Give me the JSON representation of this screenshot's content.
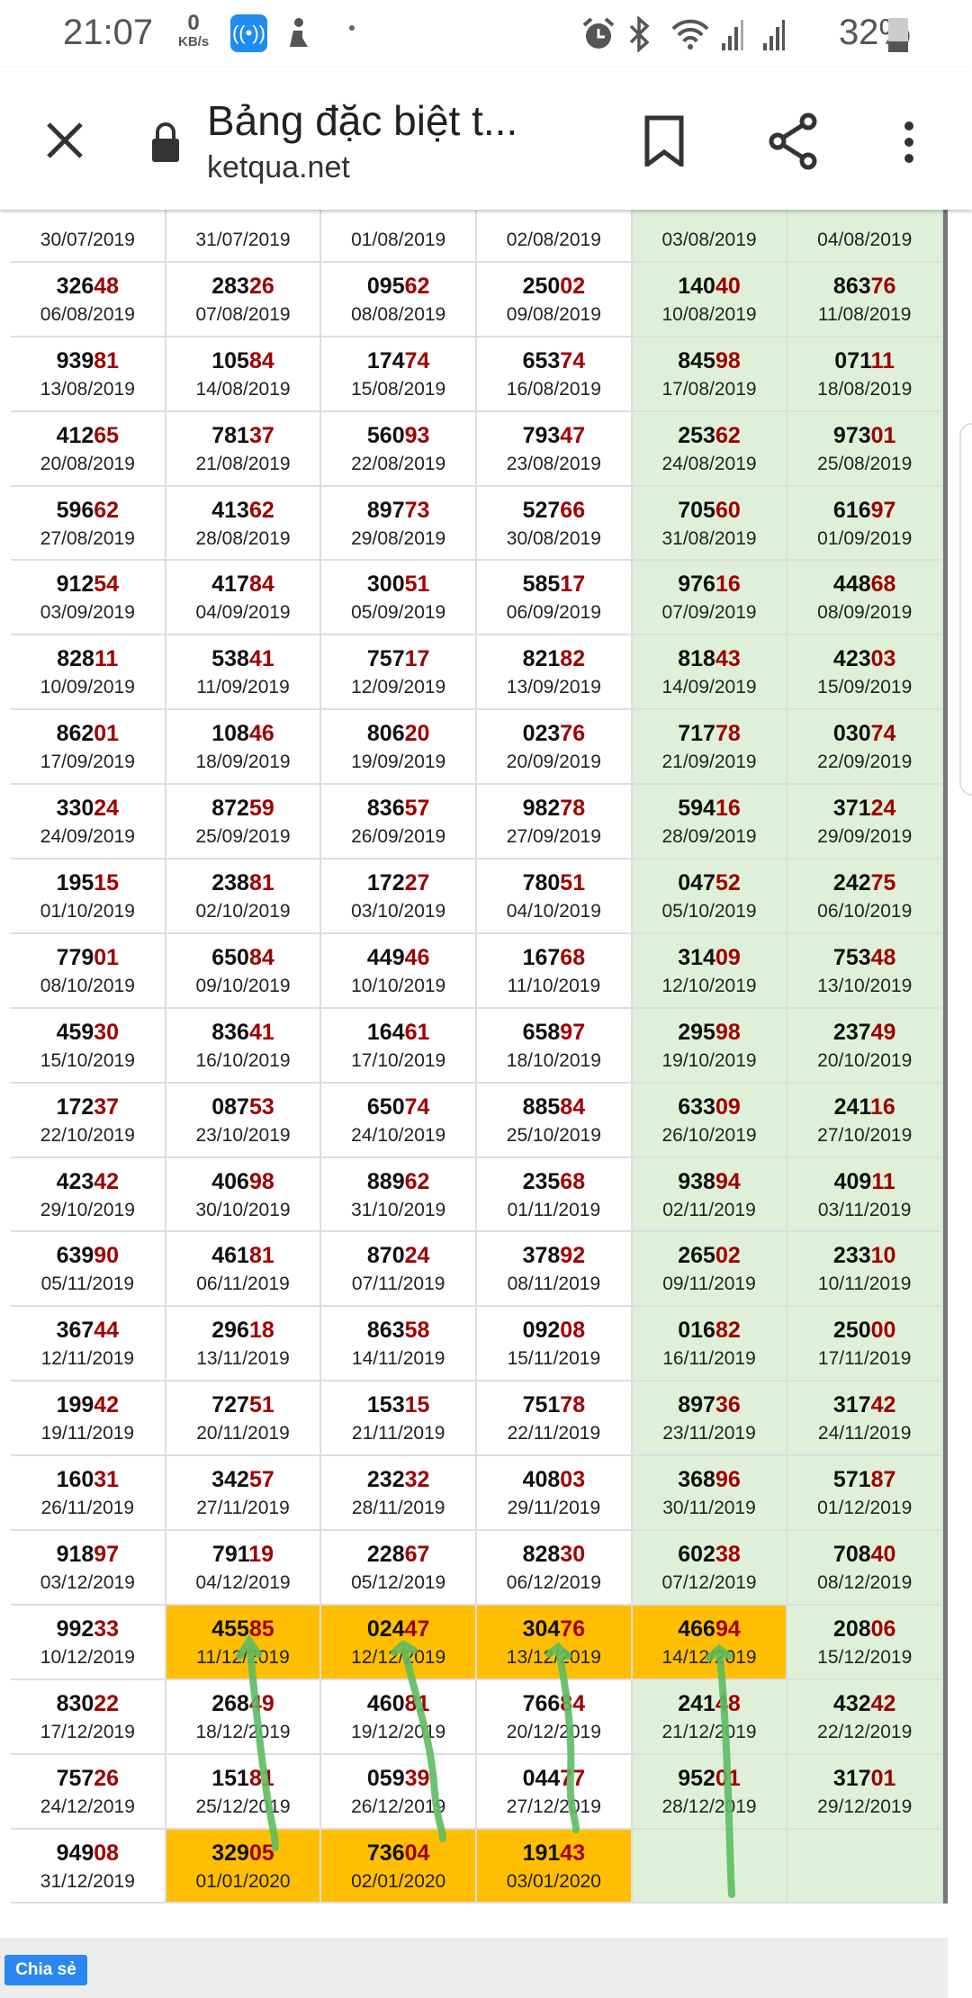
{
  "status_bar": {
    "time": "21:07",
    "net_speed_value": "0",
    "net_speed_unit": "KB/s",
    "battery": "32%",
    "battery_level": 0.32
  },
  "toolbar": {
    "title": "Bảng đặc biệt t...",
    "url": "ketqua.net"
  },
  "colors": {
    "highlight": "#ffbf00",
    "weekend_green": "#dff0d8",
    "tail_red": "#a00000",
    "annotation_green": "#5dbb63"
  },
  "table": {
    "rows": [
      [
        {
          "num": "",
          "date": "30/07/2019"
        },
        {
          "num": "",
          "date": "31/07/2019"
        },
        {
          "num": "",
          "date": "01/08/2019"
        },
        {
          "num": "",
          "date": "02/08/2019"
        },
        {
          "num": "",
          "date": "03/08/2019"
        },
        {
          "num": "",
          "date": "04/08/2019"
        }
      ],
      [
        {
          "num": "32648",
          "date": "06/08/2019"
        },
        {
          "num": "28326",
          "date": "07/08/2019"
        },
        {
          "num": "09562",
          "date": "08/08/2019"
        },
        {
          "num": "25002",
          "date": "09/08/2019"
        },
        {
          "num": "14040",
          "date": "10/08/2019"
        },
        {
          "num": "86376",
          "date": "11/08/2019"
        }
      ],
      [
        {
          "num": "93981",
          "date": "13/08/2019"
        },
        {
          "num": "10584",
          "date": "14/08/2019"
        },
        {
          "num": "17474",
          "date": "15/08/2019"
        },
        {
          "num": "65374",
          "date": "16/08/2019"
        },
        {
          "num": "84598",
          "date": "17/08/2019"
        },
        {
          "num": "07111",
          "date": "18/08/2019"
        }
      ],
      [
        {
          "num": "41265",
          "date": "20/08/2019"
        },
        {
          "num": "78137",
          "date": "21/08/2019"
        },
        {
          "num": "56093",
          "date": "22/08/2019"
        },
        {
          "num": "79347",
          "date": "23/08/2019"
        },
        {
          "num": "25362",
          "date": "24/08/2019"
        },
        {
          "num": "97301",
          "date": "25/08/2019"
        }
      ],
      [
        {
          "num": "59662",
          "date": "27/08/2019"
        },
        {
          "num": "41362",
          "date": "28/08/2019"
        },
        {
          "num": "89773",
          "date": "29/08/2019"
        },
        {
          "num": "52766",
          "date": "30/08/2019"
        },
        {
          "num": "70560",
          "date": "31/08/2019"
        },
        {
          "num": "61697",
          "date": "01/09/2019"
        }
      ],
      [
        {
          "num": "91254",
          "date": "03/09/2019"
        },
        {
          "num": "41784",
          "date": "04/09/2019"
        },
        {
          "num": "30051",
          "date": "05/09/2019"
        },
        {
          "num": "58517",
          "date": "06/09/2019"
        },
        {
          "num": "97616",
          "date": "07/09/2019"
        },
        {
          "num": "44868",
          "date": "08/09/2019"
        }
      ],
      [
        {
          "num": "82811",
          "date": "10/09/2019"
        },
        {
          "num": "53841",
          "date": "11/09/2019"
        },
        {
          "num": "75717",
          "date": "12/09/2019"
        },
        {
          "num": "82182",
          "date": "13/09/2019"
        },
        {
          "num": "81843",
          "date": "14/09/2019"
        },
        {
          "num": "42303",
          "date": "15/09/2019"
        }
      ],
      [
        {
          "num": "86201",
          "date": "17/09/2019"
        },
        {
          "num": "10846",
          "date": "18/09/2019"
        },
        {
          "num": "80620",
          "date": "19/09/2019"
        },
        {
          "num": "02376",
          "date": "20/09/2019"
        },
        {
          "num": "71778",
          "date": "21/09/2019"
        },
        {
          "num": "03074",
          "date": "22/09/2019"
        }
      ],
      [
        {
          "num": "33024",
          "date": "24/09/2019"
        },
        {
          "num": "87259",
          "date": "25/09/2019"
        },
        {
          "num": "83657",
          "date": "26/09/2019"
        },
        {
          "num": "98278",
          "date": "27/09/2019"
        },
        {
          "num": "59416",
          "date": "28/09/2019"
        },
        {
          "num": "37124",
          "date": "29/09/2019"
        }
      ],
      [
        {
          "num": "19515",
          "date": "01/10/2019"
        },
        {
          "num": "23881",
          "date": "02/10/2019"
        },
        {
          "num": "17227",
          "date": "03/10/2019"
        },
        {
          "num": "78051",
          "date": "04/10/2019"
        },
        {
          "num": "04752",
          "date": "05/10/2019"
        },
        {
          "num": "24275",
          "date": "06/10/2019"
        }
      ],
      [
        {
          "num": "77901",
          "date": "08/10/2019"
        },
        {
          "num": "65084",
          "date": "09/10/2019"
        },
        {
          "num": "44946",
          "date": "10/10/2019"
        },
        {
          "num": "16768",
          "date": "11/10/2019"
        },
        {
          "num": "31409",
          "date": "12/10/2019"
        },
        {
          "num": "75348",
          "date": "13/10/2019"
        }
      ],
      [
        {
          "num": "45930",
          "date": "15/10/2019"
        },
        {
          "num": "83641",
          "date": "16/10/2019"
        },
        {
          "num": "16461",
          "date": "17/10/2019"
        },
        {
          "num": "65897",
          "date": "18/10/2019"
        },
        {
          "num": "29598",
          "date": "19/10/2019"
        },
        {
          "num": "23749",
          "date": "20/10/2019"
        }
      ],
      [
        {
          "num": "17237",
          "date": "22/10/2019"
        },
        {
          "num": "08753",
          "date": "23/10/2019"
        },
        {
          "num": "65074",
          "date": "24/10/2019"
        },
        {
          "num": "88584",
          "date": "25/10/2019"
        },
        {
          "num": "63309",
          "date": "26/10/2019"
        },
        {
          "num": "24116",
          "date": "27/10/2019"
        }
      ],
      [
        {
          "num": "42342",
          "date": "29/10/2019"
        },
        {
          "num": "40698",
          "date": "30/10/2019"
        },
        {
          "num": "88962",
          "date": "31/10/2019"
        },
        {
          "num": "23568",
          "date": "01/11/2019"
        },
        {
          "num": "93894",
          "date": "02/11/2019"
        },
        {
          "num": "40911",
          "date": "03/11/2019"
        }
      ],
      [
        {
          "num": "63990",
          "date": "05/11/2019"
        },
        {
          "num": "46181",
          "date": "06/11/2019"
        },
        {
          "num": "87024",
          "date": "07/11/2019"
        },
        {
          "num": "37892",
          "date": "08/11/2019"
        },
        {
          "num": "26502",
          "date": "09/11/2019"
        },
        {
          "num": "23310",
          "date": "10/11/2019"
        }
      ],
      [
        {
          "num": "36744",
          "date": "12/11/2019"
        },
        {
          "num": "29618",
          "date": "13/11/2019"
        },
        {
          "num": "86358",
          "date": "14/11/2019"
        },
        {
          "num": "09208",
          "date": "15/11/2019"
        },
        {
          "num": "01682",
          "date": "16/11/2019"
        },
        {
          "num": "25000",
          "date": "17/11/2019"
        }
      ],
      [
        {
          "num": "19942",
          "date": "19/11/2019"
        },
        {
          "num": "72751",
          "date": "20/11/2019"
        },
        {
          "num": "15315",
          "date": "21/11/2019"
        },
        {
          "num": "75178",
          "date": "22/11/2019"
        },
        {
          "num": "89736",
          "date": "23/11/2019"
        },
        {
          "num": "31742",
          "date": "24/11/2019"
        }
      ],
      [
        {
          "num": "16031",
          "date": "26/11/2019"
        },
        {
          "num": "34257",
          "date": "27/11/2019"
        },
        {
          "num": "23232",
          "date": "28/11/2019"
        },
        {
          "num": "40803",
          "date": "29/11/2019"
        },
        {
          "num": "36896",
          "date": "30/11/2019"
        },
        {
          "num": "57187",
          "date": "01/12/2019"
        }
      ],
      [
        {
          "num": "91897",
          "date": "03/12/2019"
        },
        {
          "num": "79119",
          "date": "04/12/2019"
        },
        {
          "num": "22867",
          "date": "05/12/2019"
        },
        {
          "num": "82830",
          "date": "06/12/2019"
        },
        {
          "num": "60238",
          "date": "07/12/2019"
        },
        {
          "num": "70840",
          "date": "08/12/2019"
        }
      ],
      [
        {
          "num": "99233",
          "date": "10/12/2019"
        },
        {
          "num": "45585",
          "date": "11/12/2019",
          "highlight": true
        },
        {
          "num": "02447",
          "date": "12/12/2019",
          "highlight": true
        },
        {
          "num": "30476",
          "date": "13/12/2019",
          "highlight": true
        },
        {
          "num": "46694",
          "date": "14/12/2019",
          "highlight": true
        },
        {
          "num": "20806",
          "date": "15/12/2019"
        }
      ],
      [
        {
          "num": "83022",
          "date": "17/12/2019"
        },
        {
          "num": "26849",
          "date": "18/12/2019"
        },
        {
          "num": "46081",
          "date": "19/12/2019"
        },
        {
          "num": "76684",
          "date": "20/12/2019"
        },
        {
          "num": "24148",
          "date": "21/12/2019"
        },
        {
          "num": "43242",
          "date": "22/12/2019"
        }
      ],
      [
        {
          "num": "75726",
          "date": "24/12/2019"
        },
        {
          "num": "15181",
          "date": "25/12/2019"
        },
        {
          "num": "05939",
          "date": "26/12/2019"
        },
        {
          "num": "04477",
          "date": "27/12/2019"
        },
        {
          "num": "95201",
          "date": "28/12/2019"
        },
        {
          "num": "31701",
          "date": "29/12/2019"
        }
      ],
      [
        {
          "num": "94908",
          "date": "31/12/2019"
        },
        {
          "num": "32905",
          "date": "01/01/2020",
          "highlight": true
        },
        {
          "num": "73604",
          "date": "02/01/2020",
          "highlight": true
        },
        {
          "num": "19143",
          "date": "03/01/2020",
          "highlight": true
        },
        {
          "num": "",
          "date": ""
        },
        {
          "num": "",
          "date": ""
        }
      ]
    ]
  },
  "footer": {
    "share_label": "Chia sẻ"
  }
}
